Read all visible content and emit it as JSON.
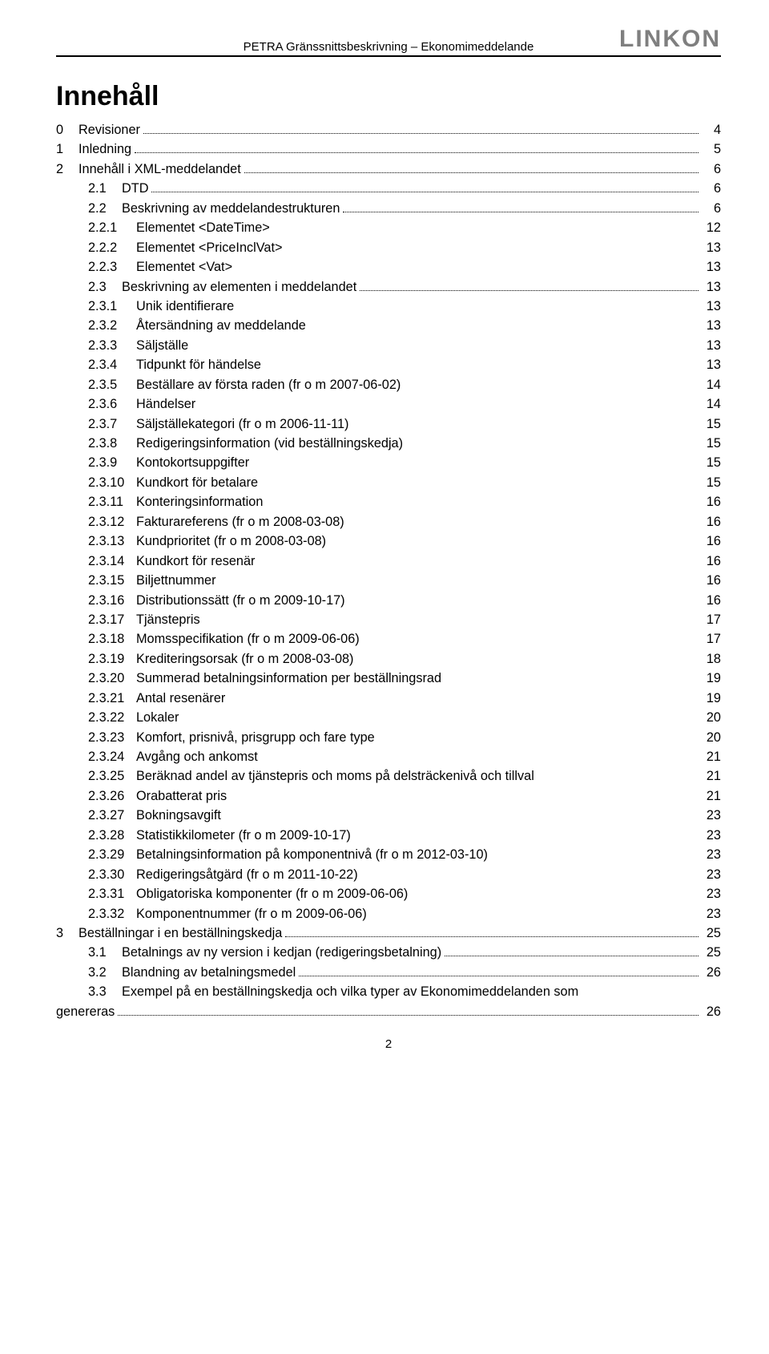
{
  "header": {
    "title": "PETRA Gränssnittsbeskrivning – Ekonomimeddelande",
    "logo": "LINKON"
  },
  "toc_title": "Innehåll",
  "page_number": "2",
  "entries": [
    {
      "level": 0,
      "num": "0",
      "label": "Revisioner",
      "page": "4",
      "dots": true
    },
    {
      "level": 0,
      "num": "1",
      "label": "Inledning",
      "page": "5",
      "dots": true
    },
    {
      "level": 0,
      "num": "2",
      "label": "Innehåll i XML-meddelandet",
      "page": "6",
      "dots": true
    },
    {
      "level": 1,
      "num": "2.1",
      "label": "DTD",
      "page": "6",
      "dots": true
    },
    {
      "level": 1,
      "num": "2.2",
      "label": "Beskrivning av meddelandestrukturen",
      "page": "6",
      "dots": true
    },
    {
      "level": 2,
      "num": "2.2.1",
      "label": "Elementet <DateTime>",
      "page": "12",
      "dots": false
    },
    {
      "level": 2,
      "num": "2.2.2",
      "label": "Elementet <PriceInclVat>",
      "page": "13",
      "dots": false
    },
    {
      "level": 2,
      "num": "2.2.3",
      "label": "Elementet <Vat>",
      "page": "13",
      "dots": false
    },
    {
      "level": 1,
      "num": "2.3",
      "label": "Beskrivning av elementen i meddelandet",
      "page": "13",
      "dots": true
    },
    {
      "level": 2,
      "num": "2.3.1",
      "label": "Unik identifierare",
      "page": "13",
      "dots": false
    },
    {
      "level": 2,
      "num": "2.3.2",
      "label": "Återsändning av meddelande",
      "page": "13",
      "dots": false
    },
    {
      "level": 2,
      "num": "2.3.3",
      "label": "Säljställe",
      "page": "13",
      "dots": false
    },
    {
      "level": 2,
      "num": "2.3.4",
      "label": "Tidpunkt för händelse",
      "page": "13",
      "dots": false
    },
    {
      "level": 2,
      "num": "2.3.5",
      "label": "Beställare av första raden (fr o m 2007-06-02)",
      "page": "14",
      "dots": false
    },
    {
      "level": 2,
      "num": "2.3.6",
      "label": "Händelser",
      "page": "14",
      "dots": false
    },
    {
      "level": 2,
      "num": "2.3.7",
      "label": "Säljställekategori (fr o m 2006-11-11)",
      "page": "15",
      "dots": false
    },
    {
      "level": 2,
      "num": "2.3.8",
      "label": "Redigeringsinformation (vid beställningskedja)",
      "page": "15",
      "dots": false
    },
    {
      "level": 2,
      "num": "2.3.9",
      "label": "Kontokortsuppgifter",
      "page": "15",
      "dots": false
    },
    {
      "level": 2,
      "num": "2.3.10",
      "label": "Kundkort för betalare",
      "page": "15",
      "dots": false
    },
    {
      "level": 2,
      "num": "2.3.11",
      "label": "Konteringsinformation",
      "page": "16",
      "dots": false
    },
    {
      "level": 2,
      "num": "2.3.12",
      "label": "Fakturareferens (fr o m 2008-03-08)",
      "page": "16",
      "dots": false
    },
    {
      "level": 2,
      "num": "2.3.13",
      "label": "Kundprioritet (fr o m 2008-03-08)",
      "page": "16",
      "dots": false
    },
    {
      "level": 2,
      "num": "2.3.14",
      "label": "Kundkort för resenär",
      "page": "16",
      "dots": false
    },
    {
      "level": 2,
      "num": "2.3.15",
      "label": "Biljettnummer",
      "page": "16",
      "dots": false
    },
    {
      "level": 2,
      "num": "2.3.16",
      "label": "Distributionssätt (fr o m 2009-10-17)",
      "page": "16",
      "dots": false
    },
    {
      "level": 2,
      "num": "2.3.17",
      "label": "Tjänstepris",
      "page": "17",
      "dots": false
    },
    {
      "level": 2,
      "num": "2.3.18",
      "label": "Momsspecifikation (fr o m 2009-06-06)",
      "page": "17",
      "dots": false
    },
    {
      "level": 2,
      "num": "2.3.19",
      "label": "Krediteringsorsak (fr o m 2008-03-08)",
      "page": "18",
      "dots": false
    },
    {
      "level": 2,
      "num": "2.3.20",
      "label": "Summerad betalningsinformation per beställningsrad",
      "page": "19",
      "dots": false
    },
    {
      "level": 2,
      "num": "2.3.21",
      "label": "Antal resenärer",
      "page": "19",
      "dots": false
    },
    {
      "level": 2,
      "num": "2.3.22",
      "label": "Lokaler",
      "page": "20",
      "dots": false
    },
    {
      "level": 2,
      "num": "2.3.23",
      "label": "Komfort, prisnivå, prisgrupp och fare type",
      "page": "20",
      "dots": false
    },
    {
      "level": 2,
      "num": "2.3.24",
      "label": "Avgång och ankomst",
      "page": "21",
      "dots": false
    },
    {
      "level": 2,
      "num": "2.3.25",
      "label": "Beräknad andel av tjänstepris och moms på delsträckenivå och tillval",
      "page": "21",
      "dots": false
    },
    {
      "level": 2,
      "num": "2.3.26",
      "label": "Orabatterat pris",
      "page": "21",
      "dots": false
    },
    {
      "level": 2,
      "num": "2.3.27",
      "label": "Bokningsavgift",
      "page": "23",
      "dots": false
    },
    {
      "level": 2,
      "num": "2.3.28",
      "label": "Statistikkilometer (fr o m 2009-10-17)",
      "page": "23",
      "dots": false
    },
    {
      "level": 2,
      "num": "2.3.29",
      "label": "Betalningsinformation på komponentnivå (fr o m 2012-03-10)",
      "page": "23",
      "dots": false
    },
    {
      "level": 2,
      "num": "2.3.30",
      "label": "Redigeringsåtgärd (fr o m 2011-10-22)",
      "page": "23",
      "dots": false
    },
    {
      "level": 2,
      "num": "2.3.31",
      "label": "Obligatoriska komponenter (fr o m 2009-06-06)",
      "page": "23",
      "dots": false
    },
    {
      "level": 2,
      "num": "2.3.32",
      "label": "Komponentnummer (fr o m 2009-06-06)",
      "page": "23",
      "dots": false
    },
    {
      "level": 0,
      "num": "3",
      "label": "Beställningar i en beställningskedja",
      "page": "25",
      "dots": true
    },
    {
      "level": 1,
      "num": "3.1",
      "label": "Betalnings av ny version i kedjan (redigeringsbetalning)",
      "page": "25",
      "dots": true
    },
    {
      "level": 1,
      "num": "3.2",
      "label": "Blandning av betalningsmedel",
      "page": "26",
      "dots": true
    },
    {
      "level": 3,
      "num": "3.3",
      "label": "Exempel på en beställningskedja och vilka typer av Ekonomimeddelanden som genereras",
      "page": "26",
      "dots": true
    }
  ]
}
